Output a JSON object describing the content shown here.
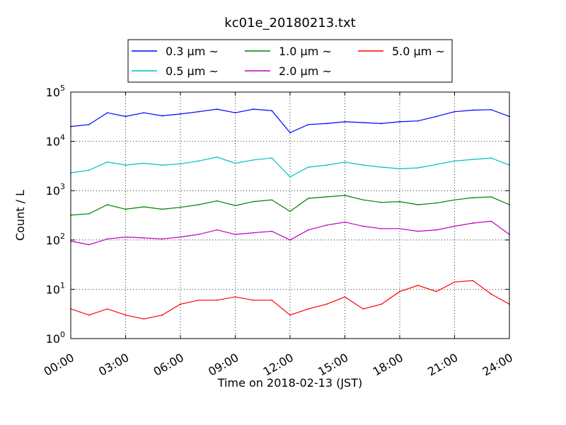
{
  "chart_data": {
    "type": "line",
    "title": "kc01e_20180213.txt",
    "xlabel": "Time on 2018-02-13 (JST)",
    "ylabel": "Count / L",
    "yscale": "log",
    "ylim": [
      1,
      100000
    ],
    "xlim": [
      "00:00",
      "24:00"
    ],
    "x_ticks": [
      "00:00",
      "03:00",
      "06:00",
      "09:00",
      "12:00",
      "15:00",
      "18:00",
      "21:00",
      "24:00"
    ],
    "y_ticks": [
      {
        "base": "10",
        "exp": "0"
      },
      {
        "base": "10",
        "exp": "1"
      },
      {
        "base": "10",
        "exp": "2"
      },
      {
        "base": "10",
        "exp": "3"
      },
      {
        "base": "10",
        "exp": "4"
      },
      {
        "base": "10",
        "exp": "5"
      }
    ],
    "grid": true,
    "legend_position": "top-center",
    "x": [
      "00:00",
      "01:00",
      "02:00",
      "03:00",
      "04:00",
      "05:00",
      "06:00",
      "07:00",
      "08:00",
      "09:00",
      "10:00",
      "11:00",
      "12:00",
      "13:00",
      "14:00",
      "15:00",
      "16:00",
      "17:00",
      "18:00",
      "19:00",
      "20:00",
      "21:00",
      "22:00",
      "23:00",
      "24:00"
    ],
    "series": [
      {
        "name": "0.3 μm ~",
        "color": "#0000ff",
        "values": [
          20000,
          22000,
          38000,
          32000,
          38000,
          33000,
          36000,
          40000,
          45000,
          38000,
          45000,
          42000,
          15000,
          22000,
          23000,
          25000,
          24000,
          23000,
          25000,
          26000,
          32000,
          40000,
          43000,
          44000,
          32000
        ]
      },
      {
        "name": "0.5 μm ~",
        "color": "#00bfbf",
        "values": [
          2300,
          2600,
          3800,
          3300,
          3600,
          3300,
          3500,
          4000,
          4800,
          3600,
          4200,
          4600,
          1900,
          3000,
          3300,
          3800,
          3300,
          3000,
          2800,
          2900,
          3400,
          4000,
          4300,
          4600,
          3300
        ]
      },
      {
        "name": "1.0 μm ~",
        "color": "#008000",
        "values": [
          320,
          340,
          520,
          420,
          470,
          420,
          460,
          520,
          620,
          500,
          600,
          650,
          380,
          700,
          750,
          800,
          650,
          580,
          600,
          520,
          560,
          650,
          720,
          750,
          520
        ]
      },
      {
        "name": "2.0 μm ~",
        "color": "#bf00bf",
        "values": [
          95,
          80,
          105,
          115,
          110,
          105,
          115,
          130,
          160,
          130,
          140,
          150,
          100,
          160,
          200,
          230,
          190,
          170,
          170,
          150,
          160,
          190,
          220,
          240,
          130
        ]
      },
      {
        "name": "5.0 μm ~",
        "color": "#ff0000",
        "values": [
          4,
          3,
          4,
          3,
          2.5,
          3,
          5,
          6,
          6,
          7,
          6,
          6,
          3,
          4,
          5,
          7,
          4,
          5,
          9,
          12,
          9,
          14,
          15,
          8,
          5
        ]
      }
    ]
  }
}
